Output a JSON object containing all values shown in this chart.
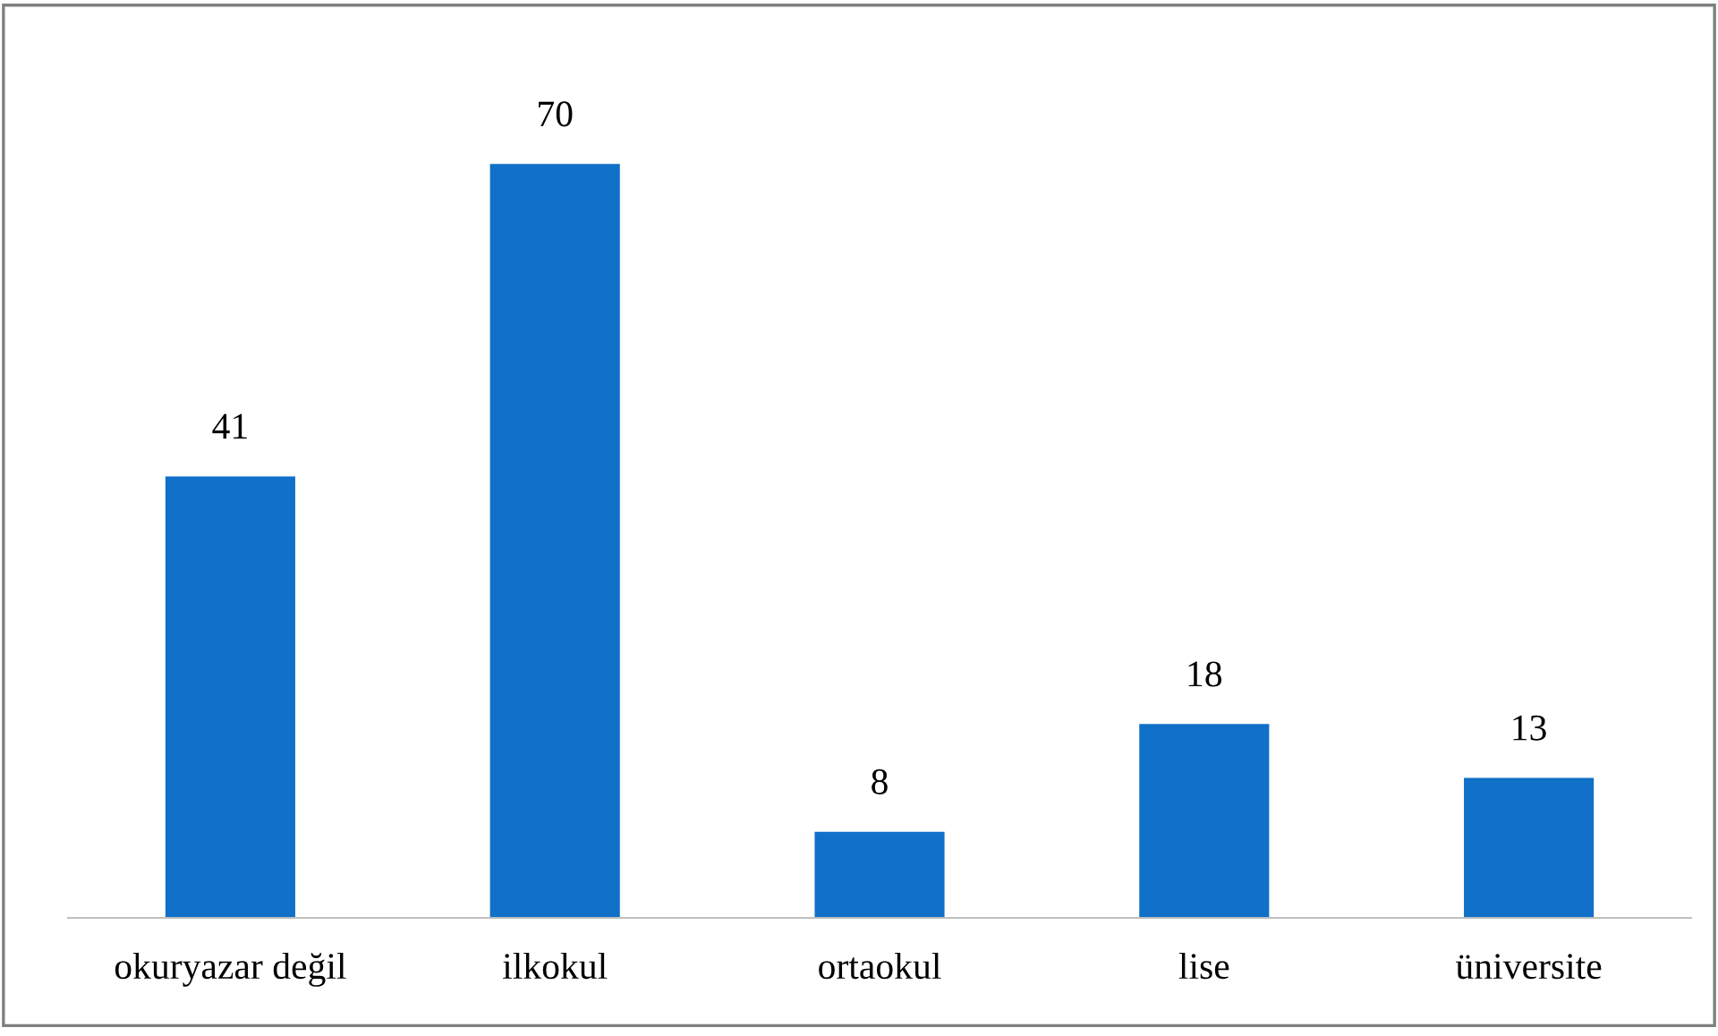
{
  "chart_data": {
    "type": "bar",
    "categories": [
      "okuryazar değil",
      "ilkokul",
      "ortaokul",
      "lise",
      "üniversite"
    ],
    "values": [
      41,
      70,
      8,
      18,
      13
    ],
    "color": "#1170c8",
    "data_labels": true,
    "grid": false,
    "legend": false
  }
}
